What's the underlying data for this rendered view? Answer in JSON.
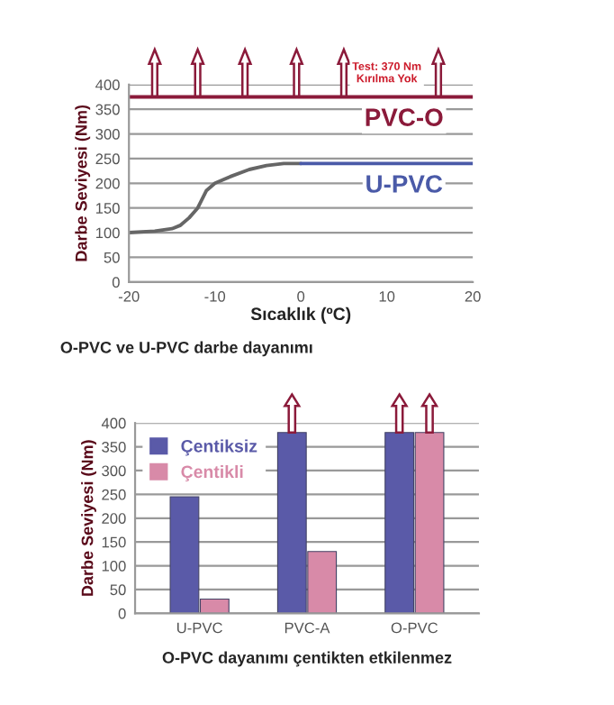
{
  "chart_data": [
    {
      "type": "line",
      "title": "O-PVC ve U-PVC darbe dayanımı",
      "xlabel": "Sıcaklık (ºC)",
      "ylabel": "Darbe Seviyesi (Nm)",
      "xlim": [
        -20,
        20
      ],
      "xticks": [
        -20,
        -10,
        0,
        10,
        20
      ],
      "ylim": [
        0,
        400
      ],
      "yticks": [
        0,
        50,
        100,
        150,
        200,
        250,
        300,
        350,
        400
      ],
      "grid": "y",
      "legend": "right",
      "marker": "none",
      "line_style": "solid",
      "series": [
        {
          "name": "PVC-O",
          "color": "#8b1a3a",
          "x": [
            -20,
            20
          ],
          "values": [
            375,
            375
          ]
        },
        {
          "color": "#666666",
          "x": [
            -20,
            -17,
            -15,
            -14,
            -13,
            -12,
            -11,
            -10,
            -8,
            -6,
            -4,
            -2,
            0
          ],
          "values": [
            100,
            103,
            108,
            115,
            130,
            150,
            185,
            200,
            215,
            228,
            236,
            240,
            240
          ]
        },
        {
          "name": "U-PVC",
          "color": "#4a5aa8",
          "x": [
            0,
            20
          ],
          "values": [
            240,
            240
          ]
        }
      ],
      "annotations": [
        {
          "text": "Test: 370 Nm\nKırılma Yok",
          "x": 10,
          "y": 375
        }
      ]
    },
    {
      "type": "bar",
      "title": "O-PVC dayanımı çentikten etkilenmez",
      "ylabel": "Darbe Seviyesi (Nm)",
      "categories": [
        "U-PVC",
        "PVC-A",
        "O-PVC"
      ],
      "ylim": [
        0,
        400
      ],
      "yticks": [
        0,
        50,
        100,
        150,
        200,
        250,
        300,
        350,
        400
      ],
      "grid": "y",
      "legend": "top left",
      "series": [
        {
          "name": "Çentiksiz",
          "color": "#5a5aa8",
          "values": [
            245,
            380,
            380
          ]
        },
        {
          "name": "Çentikli",
          "color": "#d88aa8",
          "values": [
            30,
            130,
            380
          ]
        }
      ]
    }
  ]
}
